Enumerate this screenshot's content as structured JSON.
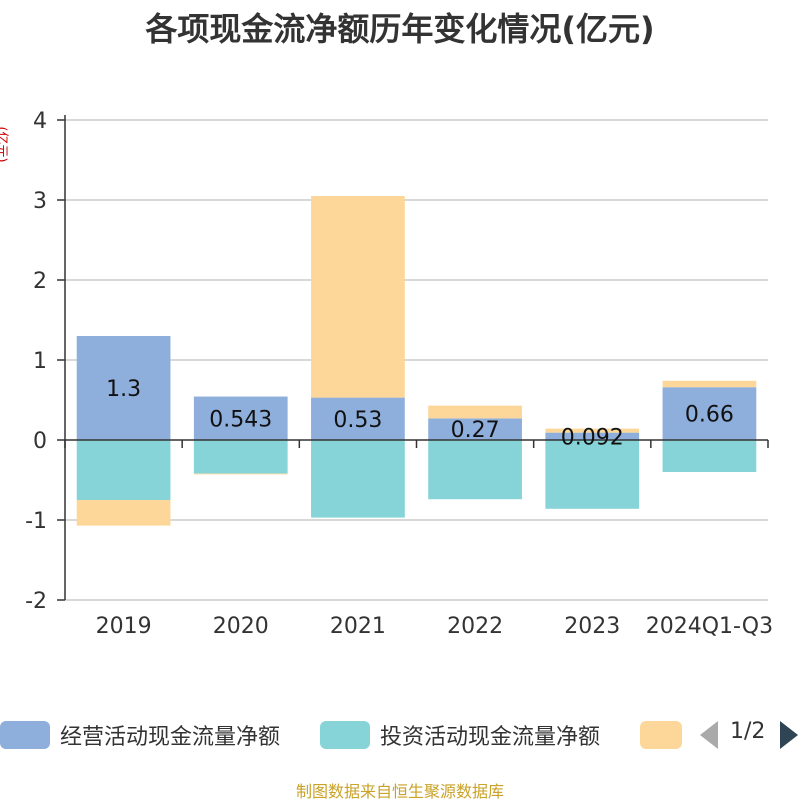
{
  "chart_data": {
    "type": "bar",
    "stacked": true,
    "title": "各项现金流净额历年变化情况(亿元)",
    "ylabel": "(亿元)",
    "categories": [
      "2019",
      "2020",
      "2021",
      "2022",
      "2023",
      "2024Q1-Q3"
    ],
    "ylim": [
      -2,
      4
    ],
    "yticks": [
      "4",
      "3",
      "2",
      "1",
      "0",
      "-1",
      "-2"
    ],
    "grid": true,
    "series": [
      {
        "name": "经营活动现金流量净额",
        "color": "#8eaedc",
        "values": [
          1.3,
          0.543,
          0.53,
          0.27,
          0.092,
          0.66
        ],
        "labels": [
          "1.3",
          "0.543",
          "0.53",
          "0.27",
          "0.092",
          "0.66"
        ]
      },
      {
        "name": "投资活动现金流量净额",
        "color": "#86d4d8",
        "values": [
          -0.75,
          -0.42,
          -0.97,
          -0.74,
          -0.86,
          -0.4
        ]
      },
      {
        "name": "",
        "color": "#fdd799",
        "values": [
          -0.32,
          -0.01,
          2.52,
          0.16,
          0.05,
          0.08
        ]
      }
    ],
    "legend": {
      "position": "bottom",
      "page": "1/2"
    }
  },
  "source": "制图数据来自恒生聚源数据库"
}
